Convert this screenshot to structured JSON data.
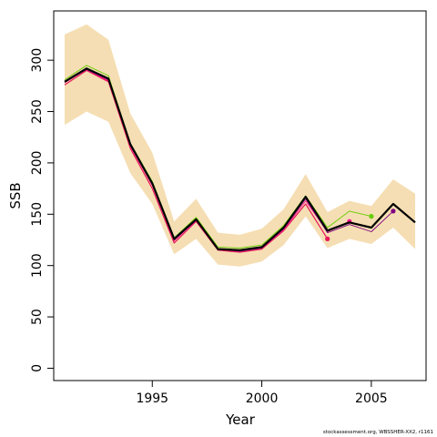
{
  "chart_data": {
    "type": "line",
    "xlabel": "Year",
    "ylabel": "SSB",
    "xlim": [
      1990.5,
      2007.5
    ],
    "ylim": [
      -12,
      348
    ],
    "x_ticks": [
      1995,
      2000,
      2005
    ],
    "y_ticks": [
      0,
      50,
      100,
      150,
      200,
      250,
      300
    ],
    "grid": false,
    "legend": "none",
    "confidence_band": {
      "color": "#f5deb3",
      "x": [
        1991,
        1992,
        1993,
        1994,
        1995,
        1996,
        1997,
        1998,
        1999,
        2000,
        2001,
        2002,
        2003,
        2004,
        2005,
        2006,
        2007
      ],
      "upper": [
        325,
        335,
        320,
        248,
        210,
        143,
        165,
        132,
        130,
        136,
        155,
        189,
        152,
        163,
        158,
        184,
        170
      ],
      "lower": [
        237,
        250,
        240,
        190,
        160,
        111,
        126,
        101,
        99,
        104,
        120,
        148,
        117,
        126,
        121,
        137,
        116
      ]
    },
    "series": [
      {
        "color": "#000000",
        "width": 2.2,
        "x": [
          1991,
          1992,
          1993,
          1994,
          1995,
          1996,
          1997,
          1998,
          1999,
          2000,
          2001,
          2002,
          2003,
          2004,
          2005,
          2006,
          2007
        ],
        "values": [
          279,
          292,
          282,
          218,
          180,
          126,
          145,
          116,
          115,
          118,
          137,
          167,
          134,
          142,
          137,
          160,
          142
        ]
      },
      {
        "color": "#e8185a",
        "width": 1.2,
        "x": [
          1991,
          1992,
          1993,
          1994,
          1995,
          1996,
          1997,
          1998,
          1999,
          2000,
          2001,
          2002,
          2003
        ],
        "values": [
          276,
          290,
          279,
          214,
          175,
          122,
          143,
          115,
          113,
          116,
          134,
          160,
          126
        ],
        "end_point": true
      },
      {
        "color": "#66cc00",
        "width": 0.9,
        "x": [
          1991,
          1992,
          1993,
          1994,
          1995,
          1996,
          1997,
          1998,
          1999,
          2000,
          2001,
          2002,
          2003,
          2004,
          2005
        ],
        "values": [
          281,
          295,
          285,
          219,
          182,
          127,
          147,
          118,
          117,
          120,
          139,
          168,
          137,
          153,
          148
        ],
        "end_point": true
      },
      {
        "color": "#ff1493",
        "width": 0.9,
        "x": [
          1991,
          1992,
          1993,
          1994,
          1995,
          1996,
          1997,
          1998,
          1999,
          2000,
          2001,
          2002,
          2003,
          2004
        ],
        "values": [
          278,
          291,
          280,
          216,
          178,
          124,
          144,
          116,
          114,
          117,
          135,
          163,
          133,
          143
        ],
        "end_point": true
      },
      {
        "color": "#800080",
        "width": 0.9,
        "x": [
          1991,
          1992,
          1993,
          1994,
          1995,
          1996,
          1997,
          1998,
          1999,
          2000,
          2001,
          2002,
          2003,
          2004,
          2005,
          2006
        ],
        "values": [
          279,
          291,
          281,
          217,
          179,
          125,
          144,
          116,
          114,
          117,
          136,
          165,
          132,
          140,
          133,
          153
        ],
        "end_point": true
      }
    ],
    "footnote": "stockassessment.org, WBSSHER-XX2, r1161"
  }
}
